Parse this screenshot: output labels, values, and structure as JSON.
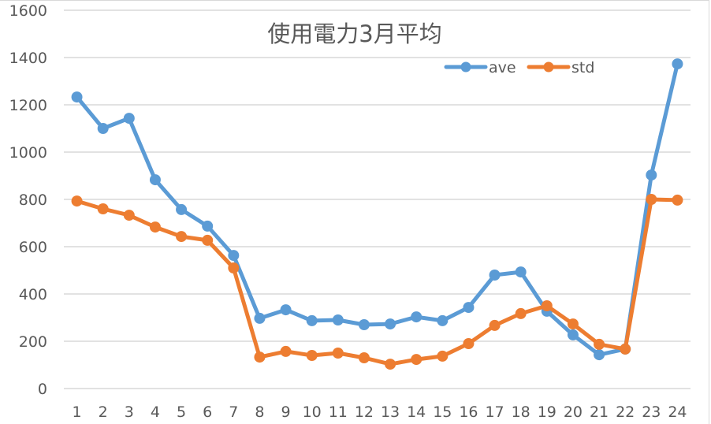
{
  "chart_data": {
    "type": "line",
    "title": "使用電力3月平均",
    "xlabel": "",
    "ylabel": "",
    "ylim": [
      0,
      1600
    ],
    "yticks": [
      0,
      200,
      400,
      600,
      800,
      1000,
      1200,
      1400,
      1600
    ],
    "grid": true,
    "legend_position": "top-right",
    "categories": [
      "1",
      "2",
      "3",
      "4",
      "5",
      "6",
      "7",
      "8",
      "9",
      "10",
      "11",
      "12",
      "13",
      "14",
      "15",
      "16",
      "17",
      "18",
      "19",
      "20",
      "21",
      "22",
      "23",
      "24"
    ],
    "series": [
      {
        "name": "ave",
        "color": "#5b9bd5",
        "values": [
          1233,
          1100,
          1143,
          883,
          757,
          687,
          563,
          297,
          333,
          287,
          290,
          270,
          273,
          303,
          287,
          343,
          480,
          493,
          327,
          227,
          143,
          167,
          903,
          1373
        ]
      },
      {
        "name": "std",
        "color": "#ed7d31",
        "values": [
          793,
          760,
          733,
          683,
          643,
          627,
          510,
          133,
          157,
          140,
          150,
          130,
          103,
          123,
          137,
          190,
          267,
          317,
          350,
          273,
          187,
          167,
          800,
          797
        ]
      }
    ]
  },
  "legend": {
    "items": [
      {
        "label": "ave",
        "color": "#5b9bd5"
      },
      {
        "label": "std",
        "color": "#ed7d31"
      }
    ]
  },
  "colors": {
    "gridline": "#d9d9d9",
    "text": "#595959"
  }
}
